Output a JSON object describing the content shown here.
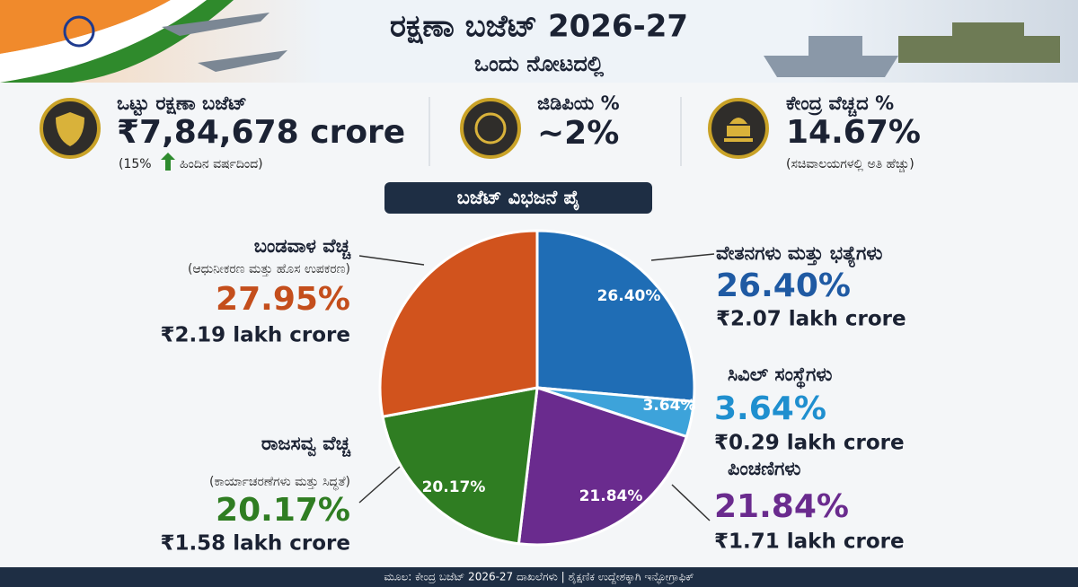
{
  "header": {
    "title": "ರಕ್ಷಣಾ ಬಜೆಟ್ 2026-27",
    "subtitle": "ಒಂದು ನೋಟದಲ್ಲಿ"
  },
  "stats": [
    {
      "label": "ಒಟ್ಟು ರಕ್ಷಣಾ ಬಜೆಟ್",
      "value": "₹7,84,678 crore",
      "note_start": "(15%",
      "note_end": "ಹಿಂದಿನ ವರ್ಷದಿಂದ)"
    },
    {
      "label": "ಜಿಡಿಪಿಯ %",
      "value": "~2%"
    },
    {
      "label": "ಕೇಂದ್ರ ವೆಚ್ಚದ %",
      "value": "14.67%",
      "note_end": "(ಸಚಿವಾಲಯಗಳಲ್ಲಿ ಅತಿ ಹೆಚ್ಚು)"
    }
  ],
  "chart_data": {
    "type": "pie",
    "title": "ಬಜೆಟ್ ವಿಭಜನೆ ಪೈ",
    "categories": [
      "ವೇತನಗಳು ಮತ್ತು ಭತ್ಯೆಗಳು",
      "ಸಿವಿಲ್ ಸಂಸ್ಥೆಗಳು",
      "ಪಿಂಚಣಿಗಳು",
      "ರಾಜಸವ್ವ ವೆಚ್ಚ",
      "ಬಂಡವಾಳ ವೆಚ್ಚ"
    ],
    "subtitles": [
      null,
      null,
      null,
      "(ಕಾರ್ಯಾಚರಣೆಗಳು ಮತ್ತು ಸಿದ್ಧತೆ)",
      "(ಆಧುನೀಕರಣ ಮತ್ತು ಹೊಸ ಉಪಕರಣ)"
    ],
    "values": [
      26.4,
      3.64,
      21.84,
      20.17,
      27.95
    ],
    "value_labels": [
      "26.40%",
      "3.64%",
      "21.84%",
      "20.17%",
      "27.95%"
    ],
    "amounts": [
      "₹2.07 lakh crore",
      "₹0.29 lakh crore",
      "₹1.71 lakh crore",
      "₹1.58 lakh crore",
      "₹2.19 lakh crore"
    ],
    "colors": [
      "#1f6db5",
      "#3da3da",
      "#6a2b8e",
      "#2f7d22",
      "#d1531d"
    ],
    "label_colors": [
      "#1f5aa3",
      "#1f8fcf",
      "#6a2b8e",
      "#2f7d22",
      "#c44e1c"
    ]
  },
  "footer": "ಮೂಲ: ಕೇಂದ್ರ ಬಜೆಟ್ 2026-27 ದಾಖಲೆಗಳು | ಶೈಕ್ಷಣಿಕ ಉದ್ದೇಶಕ್ಕಾಗಿ ಇನ್ಫೋಗ್ರಾಫಿಕ್"
}
